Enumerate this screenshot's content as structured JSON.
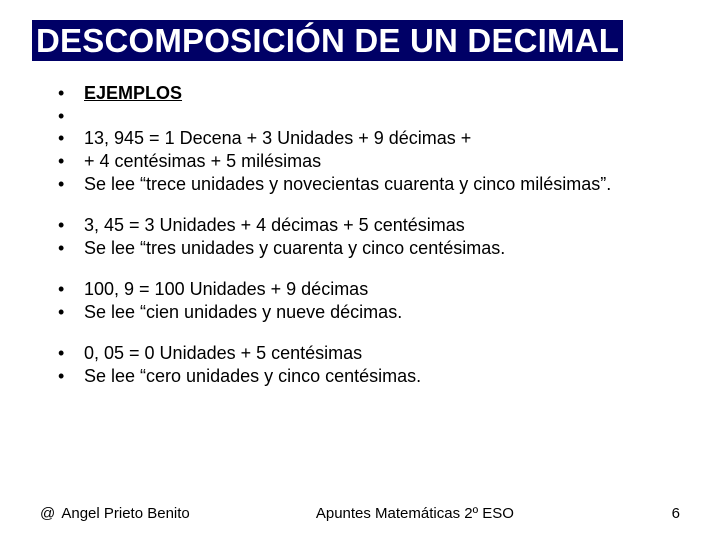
{
  "title": {
    "text": "DESCOMPOSICIÓN DE UN DECIMAL",
    "highlight_bg": "#000066",
    "highlight_fg": "#ffffff"
  },
  "bullets_group1": [
    {
      "text": "EJEMPLOS",
      "underline_bold": true
    },
    {
      "text": "",
      "blank": true
    },
    {
      "text": "13, 945 = 1 Decena + 3 Unidades + 9 décimas +"
    },
    {
      "text": "+ 4 centésimas + 5 milésimas"
    },
    {
      "text": "Se lee “trece unidades y novecientas cuarenta y cinco milésimas”."
    }
  ],
  "bullets_group2": [
    {
      "text": "3, 45 = 3 Unidades + 4 décimas + 5 centésimas"
    },
    {
      "text": "Se lee “tres unidades y cuarenta y cinco centésimas."
    }
  ],
  "bullets_group3": [
    {
      "text": "100, 9 = 100 Unidades + 9 décimas"
    },
    {
      "text": "Se lee “cien unidades y nueve décimas."
    }
  ],
  "bullets_group4": [
    {
      "text": "0, 05 = 0 Unidades + 5 centésimas"
    },
    {
      "text": "Se lee “cero unidades y cinco centésimas."
    }
  ],
  "footer": {
    "at": "@",
    "author": "Angel Prieto Benito",
    "center": "Apuntes Matemáticas 2º ESO",
    "page": "6"
  }
}
